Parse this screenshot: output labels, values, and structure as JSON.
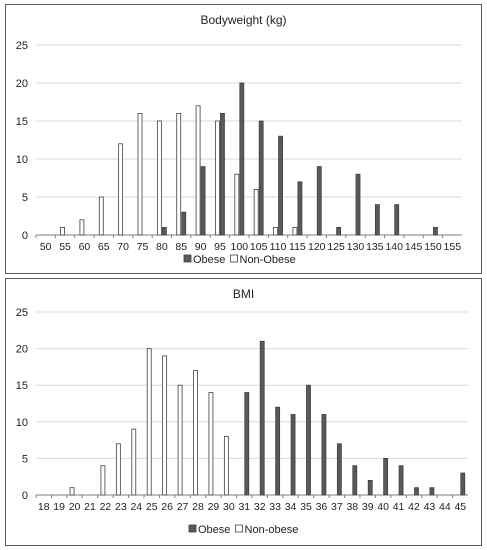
{
  "chart_data": [
    {
      "type": "bar",
      "title": "Bodyweight (kg)",
      "xlabel": "",
      "ylabel": "",
      "ylim": [
        0,
        25
      ],
      "yticks": [
        "0",
        "5",
        "10",
        "15",
        "20",
        "25"
      ],
      "grid": true,
      "legend_position": "bottom",
      "categories": [
        "50",
        "55",
        "60",
        "65",
        "70",
        "75",
        "80",
        "85",
        "90",
        "95",
        "100",
        "105",
        "110",
        "115",
        "120",
        "125",
        "130",
        "135",
        "140",
        "145",
        "150",
        "155"
      ],
      "series": [
        {
          "name": "Obese",
          "color": "#595959",
          "values": [
            0,
            0,
            0,
            0,
            0,
            0,
            1,
            3,
            9,
            16,
            20,
            15,
            13,
            7,
            9,
            1,
            8,
            4,
            4,
            0,
            1,
            0
          ]
        },
        {
          "name": "Non-Obese",
          "color": "#ffffff",
          "values": [
            0,
            1,
            2,
            5,
            12,
            16,
            15,
            16,
            17,
            15,
            8,
            6,
            1,
            1,
            0,
            0,
            0,
            0,
            0,
            0,
            0,
            0
          ]
        }
      ]
    },
    {
      "type": "bar",
      "title": "BMI",
      "xlabel": "",
      "ylabel": "",
      "ylim": [
        0,
        25
      ],
      "yticks": [
        "0",
        "5",
        "10",
        "15",
        "20",
        "25"
      ],
      "grid": true,
      "legend_position": "bottom",
      "categories": [
        "18",
        "19",
        "20",
        "21",
        "22",
        "23",
        "24",
        "25",
        "26",
        "27",
        "28",
        "29",
        "30",
        "31",
        "32",
        "33",
        "34",
        "35",
        "36",
        "37",
        "38",
        "39",
        "40",
        "41",
        "42",
        "43",
        "44",
        "45"
      ],
      "series": [
        {
          "name": "Obese",
          "color": "#595959",
          "values": [
            0,
            0,
            0,
            0,
            0,
            0,
            0,
            0,
            0,
            0,
            0,
            0,
            0,
            14,
            21,
            12,
            11,
            15,
            11,
            7,
            4,
            2,
            5,
            4,
            1,
            1,
            0,
            3
          ]
        },
        {
          "name": "Non-obese",
          "color": "#ffffff",
          "values": [
            0,
            0,
            1,
            0,
            4,
            7,
            9,
            20,
            19,
            15,
            17,
            14,
            8,
            0,
            0,
            0,
            0,
            0,
            0,
            0,
            0,
            0,
            0,
            0,
            0,
            0,
            0,
            0
          ]
        }
      ]
    }
  ]
}
